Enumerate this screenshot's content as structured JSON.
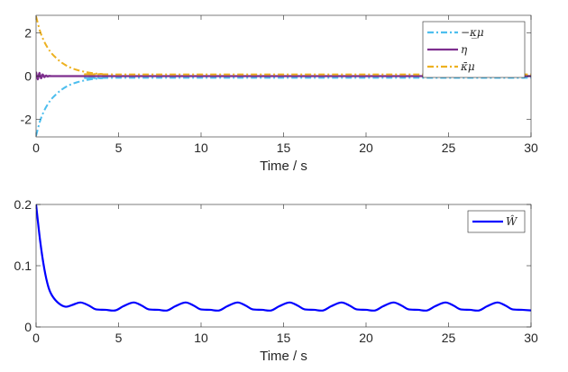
{
  "chart_data": [
    {
      "type": "line",
      "xlabel": "Time / s",
      "ylabel": "",
      "xlim": [
        0,
        30
      ],
      "ylim": [
        -2.8,
        2.8
      ],
      "xticks": [
        0,
        5,
        10,
        15,
        20,
        25,
        30
      ],
      "yticks": [
        -2,
        0,
        2
      ],
      "grid": false,
      "legend_placement": "top-right",
      "series": [
        {
          "name": "−κ̲μ",
          "color": "#4DBEEE",
          "style": "dashdot",
          "x": [
            0,
            0.25,
            0.5,
            0.75,
            1,
            1.5,
            2,
            2.5,
            3,
            3.5,
            4,
            5,
            30
          ],
          "y": [
            -2.75,
            -2.05,
            -1.58,
            -1.25,
            -1.0,
            -0.65,
            -0.42,
            -0.28,
            -0.19,
            -0.13,
            -0.1,
            -0.08,
            -0.08
          ]
        },
        {
          "name": "η",
          "color": "#7E2F8E",
          "style": "solid",
          "x": [
            0,
            0.1,
            0.2,
            0.3,
            0.4,
            0.5,
            0.6,
            0.7,
            0.8,
            1,
            1.5,
            30
          ],
          "y": [
            0.2,
            -0.15,
            0.15,
            -0.1,
            0.08,
            -0.05,
            0.03,
            -0.02,
            0.01,
            0,
            0,
            0
          ]
        },
        {
          "name": "κ̄μ",
          "color": "#EDB120",
          "style": "dashdot",
          "x": [
            0,
            0.25,
            0.5,
            0.75,
            1,
            1.5,
            2,
            2.5,
            3,
            3.5,
            4,
            5,
            30
          ],
          "y": [
            2.75,
            2.05,
            1.58,
            1.25,
            1.0,
            0.65,
            0.42,
            0.28,
            0.19,
            0.13,
            0.1,
            0.08,
            0.08
          ]
        }
      ]
    },
    {
      "type": "line",
      "xlabel": "Time / s",
      "ylabel": "",
      "xlim": [
        0,
        30
      ],
      "ylim": [
        0,
        0.2
      ],
      "xticks": [
        0,
        5,
        10,
        15,
        20,
        25,
        30
      ],
      "yticks": [
        0,
        0.1,
        0.2
      ],
      "grid": false,
      "legend_placement": "top-right",
      "series": [
        {
          "name": "Ŵ",
          "color": "#0000FF",
          "style": "solid",
          "x": [
            0,
            0.25,
            0.5,
            0.75,
            1,
            1.4,
            1.8,
            2.2,
            2.7,
            3.2,
            3.6,
            4.2,
            4.8,
            5.3,
            5.9,
            6.4,
            6.8,
            7.4,
            7.95,
            8.45,
            9.05,
            9.55,
            9.95,
            10.55,
            11.1,
            11.6,
            12.2,
            12.7,
            13.1,
            13.7,
            14.25,
            14.75,
            15.35,
            15.85,
            16.25,
            16.85,
            17.4,
            17.9,
            18.5,
            19.0,
            19.4,
            20.0,
            20.55,
            21.05,
            21.65,
            22.15,
            22.55,
            23.15,
            23.7,
            24.2,
            24.8,
            25.3,
            25.7,
            26.3,
            26.85,
            27.35,
            27.95,
            28.45,
            28.85,
            29.45,
            30
          ],
          "y": [
            0.2,
            0.14,
            0.095,
            0.065,
            0.05,
            0.038,
            0.033,
            0.036,
            0.04,
            0.035,
            0.029,
            0.028,
            0.027,
            0.034,
            0.04,
            0.035,
            0.029,
            0.028,
            0.027,
            0.034,
            0.04,
            0.035,
            0.029,
            0.028,
            0.027,
            0.034,
            0.04,
            0.035,
            0.029,
            0.028,
            0.027,
            0.034,
            0.04,
            0.035,
            0.029,
            0.028,
            0.027,
            0.034,
            0.04,
            0.035,
            0.029,
            0.028,
            0.027,
            0.034,
            0.04,
            0.035,
            0.029,
            0.028,
            0.027,
            0.034,
            0.04,
            0.035,
            0.029,
            0.028,
            0.027,
            0.034,
            0.04,
            0.035,
            0.029,
            0.028,
            0.027
          ]
        }
      ]
    }
  ]
}
